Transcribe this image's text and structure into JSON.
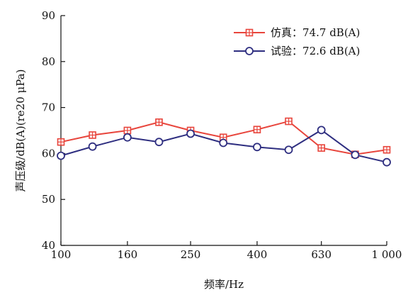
{
  "chart_data": {
    "type": "line",
    "xlabel": "频率/Hz",
    "ylabel": "声压级/dB(A)(re20 μPa)",
    "ylim": [
      40,
      90
    ],
    "yticks": [
      "40",
      "50",
      "60",
      "70",
      "80",
      "90"
    ],
    "xticks": [
      "100",
      "160",
      "250",
      "400",
      "630",
      "1 000"
    ],
    "x": [
      100,
      125,
      160,
      200,
      250,
      315,
      400,
      500,
      630,
      800,
      1000
    ],
    "series": [
      {
        "name": "仿真",
        "legend_value": "74.7 dB(A)",
        "color": "#e8453c",
        "marker": "square-plus",
        "values": [
          62.5,
          64.0,
          65.0,
          66.8,
          65.0,
          63.5,
          65.2,
          67.0,
          61.2,
          59.8,
          60.8
        ]
      },
      {
        "name": "试验",
        "legend_value": "72.6 dB(A)",
        "color": "#2e2e80",
        "marker": "circle",
        "values": [
          59.5,
          61.5,
          63.5,
          62.5,
          64.3,
          62.3,
          61.4,
          60.8,
          65.1,
          59.7,
          58.1
        ]
      }
    ],
    "legend_sep": "：",
    "legend_position": "top-right",
    "grid": false
  }
}
